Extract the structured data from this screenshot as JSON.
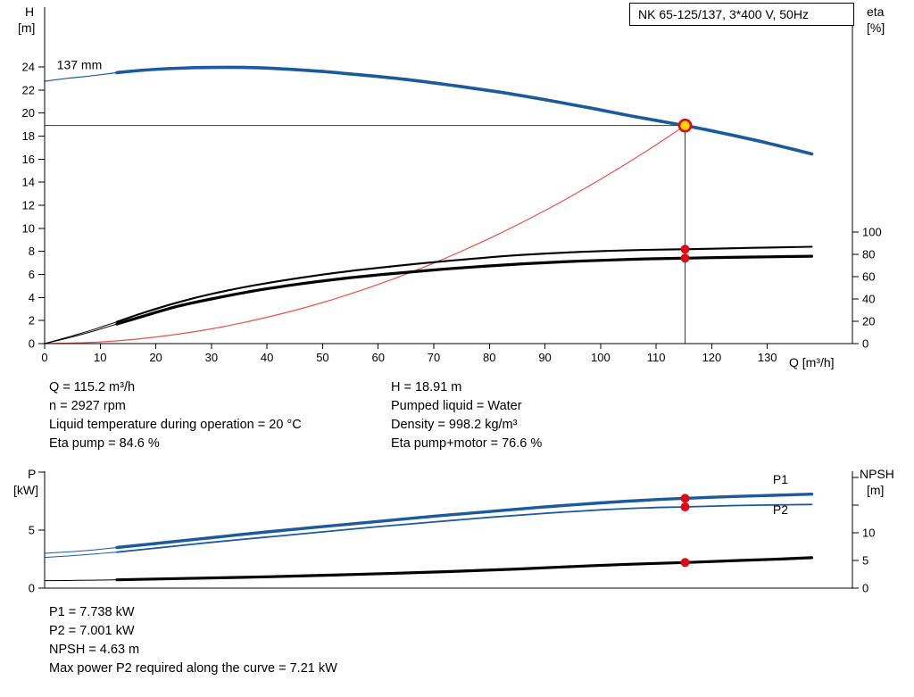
{
  "info_top": {
    "left": [
      "Q = 115.2 m³/h",
      "n = 2927 rpm",
      "Liquid temperature during operation = 20 °C",
      "Eta pump = 84.6 %"
    ],
    "right": [
      "H = 18.91 m",
      "Pumped liquid = Water",
      "Density = 998.2 kg/m³",
      "Eta pump+motor = 76.6 %"
    ]
  },
  "info_bottom": [
    "P1 = 7.738 kW",
    "P2 = 7.001 kW",
    "NPSH = 4.63 m",
    "Max power P2 required along the curve = 7.21 kW"
  ],
  "colors": {
    "curve_blue": "#1b5a9b",
    "curve_black": "#000000",
    "curve_red": "#e8534e",
    "marker_red": "#e30613",
    "marker_yellow": "#ffd800",
    "crosshair": "#3a3a3a"
  },
  "chart_data": [
    {
      "type": "line",
      "name": "head-efficiency-chart",
      "title": "NK 65-125/137, 3*400 V, 50Hz",
      "xlabel": "Q [m³/h]",
      "ylabel_left": "H [m]",
      "ylabel_right": "eta [%]",
      "axis_corner_labels": {
        "left": [
          "H",
          "[m]"
        ],
        "right": [
          "eta",
          "[%]"
        ]
      },
      "xlim": [
        0,
        145.3
      ],
      "ylim_left": [
        0,
        29.18
      ],
      "ylim_right": [
        0,
        301.6
      ],
      "x_ticks": [
        0,
        10,
        20,
        30,
        40,
        50,
        60,
        70,
        80,
        90,
        100,
        110,
        120,
        130
      ],
      "y_ticks_left": [
        0,
        2,
        4,
        6,
        8,
        10,
        12,
        14,
        16,
        18,
        20,
        22,
        24
      ],
      "y_ticks_right": [
        0,
        20,
        40,
        60,
        80,
        100
      ],
      "grid": false,
      "duty_point": {
        "q": 115.2,
        "h": 18.91
      },
      "series": [
        {
          "name": "system-curve",
          "axis": "left",
          "color": "#e8534e",
          "width": 1.2,
          "points": [
            [
              0,
              0
            ],
            [
              10,
              0.14
            ],
            [
              20,
              0.57
            ],
            [
              30,
              1.28
            ],
            [
              40,
              2.28
            ],
            [
              50,
              3.56
            ],
            [
              60,
              5.13
            ],
            [
              70,
              6.98
            ],
            [
              80,
              9.12
            ],
            [
              90,
              11.54
            ],
            [
              100,
              14.25
            ],
            [
              108,
              16.62
            ],
            [
              115.2,
              18.91
            ]
          ]
        },
        {
          "name": "eta-pump-curve-lead",
          "axis": "right",
          "color": "#000000",
          "width": 1,
          "points": [
            [
              0,
              0
            ],
            [
              5,
              7
            ],
            [
              9,
              13
            ],
            [
              13,
              19.5
            ]
          ]
        },
        {
          "name": "eta-pump-curve",
          "axis": "right",
          "color": "#000000",
          "width": 2.1,
          "points": [
            [
              13,
              19.5
            ],
            [
              18,
              28
            ],
            [
              24,
              37
            ],
            [
              30,
              44.5
            ],
            [
              38,
              52.5
            ],
            [
              46,
              59
            ],
            [
              54,
              64.5
            ],
            [
              62,
              69
            ],
            [
              70,
              73
            ],
            [
              78,
              76.5
            ],
            [
              86,
              79.5
            ],
            [
              94,
              81.7
            ],
            [
              102,
              83.2
            ],
            [
              108,
              84.0
            ],
            [
              115.2,
              84.6
            ],
            [
              122,
              85.3
            ],
            [
              130,
              86.1
            ],
            [
              138,
              86.8
            ]
          ]
        },
        {
          "name": "eta-pump-motor-curve-lead",
          "axis": "right",
          "color": "#000000",
          "width": 1,
          "points": [
            [
              0,
              0
            ],
            [
              5,
              6
            ],
            [
              9,
              11.5
            ],
            [
              13,
              17.5
            ]
          ]
        },
        {
          "name": "eta-pump-motor-curve",
          "axis": "right",
          "color": "#000000",
          "width": 3.2,
          "points": [
            [
              13,
              17.5
            ],
            [
              18,
              25
            ],
            [
              24,
              33.5
            ],
            [
              30,
              40
            ],
            [
              38,
              47.5
            ],
            [
              46,
              53.5
            ],
            [
              54,
              58.5
            ],
            [
              62,
              62.5
            ],
            [
              70,
              66
            ],
            [
              78,
              69
            ],
            [
              86,
              71.5
            ],
            [
              94,
              73.5
            ],
            [
              102,
              75
            ],
            [
              108,
              75.9
            ],
            [
              115.2,
              76.6
            ],
            [
              122,
              77.2
            ],
            [
              130,
              77.8
            ],
            [
              138,
              78.3
            ]
          ]
        },
        {
          "name": "head-curve-lead",
          "axis": "left",
          "color": "#1b5a9b",
          "width": 1.2,
          "points": [
            [
              0,
              22.75
            ],
            [
              4,
              23.0
            ],
            [
              8,
              23.2
            ],
            [
              13,
              23.5
            ]
          ]
        },
        {
          "name": "head-curve",
          "axis": "left",
          "color": "#1b5a9b",
          "width": 3.6,
          "points": [
            [
              13,
              23.5
            ],
            [
              18,
              23.72
            ],
            [
              24,
              23.88
            ],
            [
              30,
              23.95
            ],
            [
              36,
              23.95
            ],
            [
              42,
              23.85
            ],
            [
              50,
              23.6
            ],
            [
              58,
              23.25
            ],
            [
              66,
              22.85
            ],
            [
              74,
              22.35
            ],
            [
              82,
              21.8
            ],
            [
              90,
              21.15
            ],
            [
              98,
              20.45
            ],
            [
              106,
              19.7
            ],
            [
              115.2,
              18.91
            ],
            [
              122,
              18.25
            ],
            [
              130,
              17.4
            ],
            [
              138,
              16.45
            ]
          ]
        }
      ],
      "markers": [
        {
          "name": "eta-pump-duty-dot",
          "axis": "right",
          "x": 115.2,
          "y": 84.6,
          "r": 5,
          "fill": "#e30613"
        },
        {
          "name": "eta-pump-motor-duty-dot",
          "axis": "right",
          "x": 115.2,
          "y": 76.6,
          "r": 5,
          "fill": "#e30613"
        },
        {
          "name": "duty-point-marker",
          "axis": "left",
          "x": 115.2,
          "y": 18.91,
          "r": 6.5,
          "fill": "#ffd800",
          "stroke": "#e30613",
          "stroke_width": 2.6
        }
      ],
      "annotations": [
        {
          "name": "impeller-diameter-label",
          "text": "137 mm",
          "x": 2.2,
          "y": 23.8,
          "axis": "left",
          "color": "#000000"
        }
      ]
    },
    {
      "type": "line",
      "name": "power-npsh-chart",
      "ylabel_left": "P [kW]",
      "ylabel_right": "NPSH [m]",
      "axis_corner_labels": {
        "left": [
          "P",
          "[kW]"
        ],
        "right": [
          "NPSH",
          "[m]"
        ]
      },
      "xlim": [
        0,
        145.3
      ],
      "ylim_left": [
        0,
        10.08
      ],
      "ylim_right": [
        0,
        21.13
      ],
      "x_ticks": [],
      "y_ticks_left": [
        0,
        5
      ],
      "y_ticks_left_minor": [
        10
      ],
      "y_ticks_right": [
        0,
        5,
        10
      ],
      "y_ticks_right_minor": [
        15,
        20
      ],
      "grid": false,
      "series": [
        {
          "name": "p2-curve-lead",
          "axis": "left",
          "color": "#1b5a9b",
          "width": 1,
          "points": [
            [
              0,
              2.65
            ],
            [
              5,
              2.8
            ],
            [
              9,
              2.95
            ],
            [
              13,
              3.1
            ]
          ]
        },
        {
          "name": "p2-curve",
          "axis": "left",
          "color": "#1b5a9b",
          "width": 1.8,
          "points": [
            [
              13,
              3.1
            ],
            [
              20,
              3.45
            ],
            [
              30,
              3.95
            ],
            [
              40,
              4.4
            ],
            [
              50,
              4.85
            ],
            [
              60,
              5.3
            ],
            [
              70,
              5.7
            ],
            [
              80,
              6.1
            ],
            [
              90,
              6.45
            ],
            [
              100,
              6.75
            ],
            [
              108,
              6.92
            ],
            [
              115.2,
              7.001
            ],
            [
              124,
              7.12
            ],
            [
              131,
              7.17
            ],
            [
              138,
              7.21
            ]
          ]
        },
        {
          "name": "p1-curve-lead",
          "axis": "left",
          "color": "#1b5a9b",
          "width": 1,
          "points": [
            [
              0,
              3.0
            ],
            [
              5,
              3.15
            ],
            [
              9,
              3.3
            ],
            [
              13,
              3.5
            ]
          ]
        },
        {
          "name": "p1-curve",
          "axis": "left",
          "color": "#1b5a9b",
          "width": 3.4,
          "points": [
            [
              13,
              3.5
            ],
            [
              20,
              3.85
            ],
            [
              30,
              4.35
            ],
            [
              40,
              4.85
            ],
            [
              50,
              5.3
            ],
            [
              60,
              5.75
            ],
            [
              70,
              6.2
            ],
            [
              80,
              6.6
            ],
            [
              90,
              7.0
            ],
            [
              100,
              7.35
            ],
            [
              108,
              7.58
            ],
            [
              115.2,
              7.738
            ],
            [
              124,
              7.9
            ],
            [
              131,
              8.0
            ],
            [
              138,
              8.1
            ]
          ]
        },
        {
          "name": "npsh-curve-lead",
          "axis": "right",
          "color": "#000000",
          "width": 1,
          "points": [
            [
              0,
              1.35
            ],
            [
              6,
              1.4
            ],
            [
              13,
              1.5
            ]
          ]
        },
        {
          "name": "npsh-curve",
          "axis": "right",
          "color": "#000000",
          "width": 3.2,
          "points": [
            [
              13,
              1.5
            ],
            [
              25,
              1.75
            ],
            [
              40,
              2.05
            ],
            [
              55,
              2.45
            ],
            [
              70,
              2.9
            ],
            [
              85,
              3.45
            ],
            [
              95,
              3.9
            ],
            [
              105,
              4.3
            ],
            [
              115.2,
              4.63
            ],
            [
              125,
              5.0
            ],
            [
              132,
              5.25
            ],
            [
              138,
              5.5
            ]
          ]
        }
      ],
      "markers": [
        {
          "name": "p1-duty-dot",
          "axis": "left",
          "x": 115.2,
          "y": 7.738,
          "r": 5,
          "fill": "#e30613"
        },
        {
          "name": "p2-duty-dot",
          "axis": "left",
          "x": 115.2,
          "y": 7.001,
          "r": 5,
          "fill": "#e30613"
        },
        {
          "name": "npsh-duty-dot",
          "axis": "right",
          "x": 115.2,
          "y": 4.63,
          "r": 5,
          "fill": "#e30613"
        }
      ],
      "annotations": [
        {
          "name": "p1-label",
          "text": "P1",
          "x": 131,
          "y": 9.0,
          "axis": "left",
          "color": "#1b5a9b"
        },
        {
          "name": "p2-label",
          "text": "P2",
          "x": 131,
          "y": 6.38,
          "axis": "left",
          "color": "#1b5a9b"
        }
      ]
    }
  ]
}
